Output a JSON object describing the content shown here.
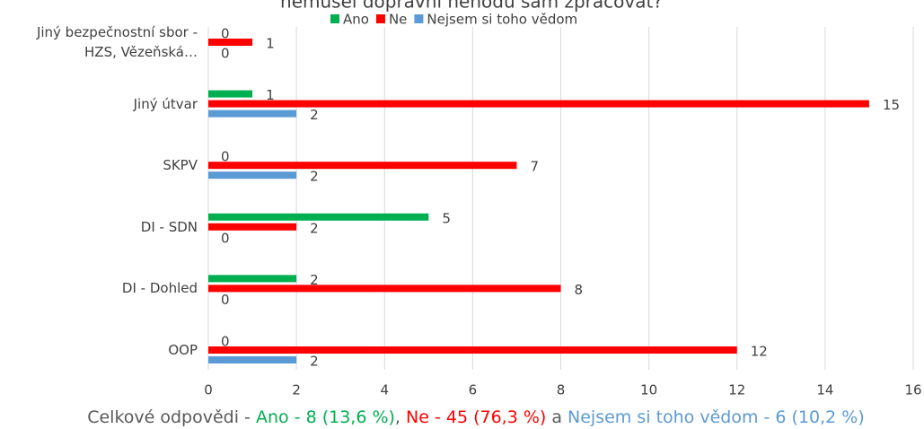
{
  "chart_data": {
    "type": "bar",
    "orientation": "horizontal",
    "title": "nemusel dopravní nehodu sám zpracovat?",
    "categories": [
      "Jiný bezpečnostní sbor - HZS, Vězeňská…",
      "Jiný útvar",
      "SKPV",
      "DI - SDN",
      "DI - Dohled",
      "OOP"
    ],
    "series": [
      {
        "name": "Ano",
        "color": "#00b050",
        "values": [
          0,
          1,
          0,
          5,
          2,
          0
        ]
      },
      {
        "name": "Ne",
        "color": "#ff0000",
        "values": [
          1,
          15,
          7,
          2,
          8,
          12
        ]
      },
      {
        "name": "Nejsem si toho vědom",
        "color": "#5b9bd5",
        "values": [
          0,
          2,
          2,
          0,
          0,
          2
        ]
      }
    ],
    "xlim": [
      0,
      16
    ],
    "xticks": [
      0,
      2,
      4,
      6,
      8,
      10,
      12,
      14,
      16
    ],
    "grid": true,
    "legend": "top",
    "footnote": [
      {
        "text": "Celkové odpovědi - ",
        "color": "#595959"
      },
      {
        "text": "Ano - 8 (13,6 %)",
        "color": "#00b050"
      },
      {
        "text": ", ",
        "color": "#595959"
      },
      {
        "text": "Ne - 45 (76,3 %)",
        "color": "#ff0000"
      },
      {
        "text": " a ",
        "color": "#595959"
      },
      {
        "text": "Nejsem si toho vědom - 6 (10,2 %)",
        "color": "#5b9bd5"
      }
    ]
  }
}
